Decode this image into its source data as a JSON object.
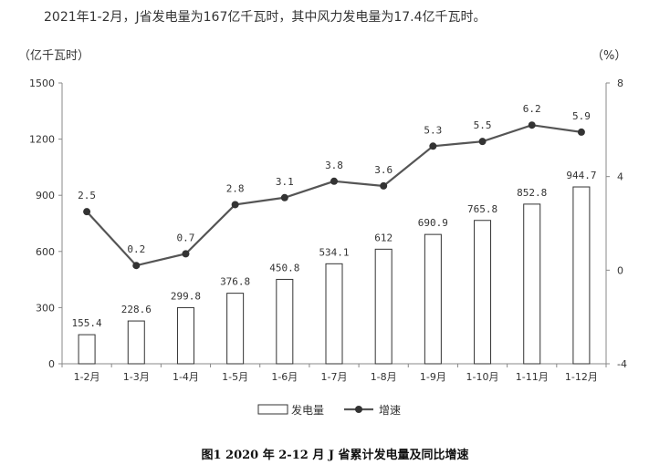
{
  "headline": "2021年1-2月，J省发电量为167亿千瓦时，其中风力发电量为17.4亿千瓦时。",
  "caption": "图1    2020 年 2-12 月 J 省累计发电量及同比增速",
  "chart_data": {
    "type": "bar",
    "categories": [
      "1-2月",
      "1-3月",
      "1-4月",
      "1-5月",
      "1-6月",
      "1-7月",
      "1-8月",
      "1-9月",
      "1-10月",
      "1-11月",
      "1-12月"
    ],
    "series": [
      {
        "name": "发电量",
        "type": "bar",
        "axis": "left",
        "values": [
          155.4,
          228.6,
          299.8,
          376.8,
          450.8,
          534.1,
          612,
          690.9,
          765.8,
          852.8,
          944.7
        ],
        "labels": [
          "155.4",
          "228.6",
          "299.8",
          "376.8",
          "450.8",
          "534.1",
          "612",
          "690.9",
          "765.8",
          "852.8",
          "944.7"
        ]
      },
      {
        "name": "增速",
        "type": "line",
        "axis": "right",
        "values": [
          2.5,
          0.2,
          0.7,
          2.8,
          3.1,
          3.8,
          3.6,
          5.3,
          5.5,
          6.2,
          5.9
        ],
        "labels": [
          "2.5",
          "0.2",
          "0.7",
          "2.8",
          "3.1",
          "3.8",
          "3.6",
          "5.3",
          "5.5",
          "6.2",
          "5.9"
        ]
      }
    ],
    "y_left": {
      "label": "（亿千瓦时）",
      "min": 0,
      "max": 1500,
      "ticks": [
        0,
        300,
        600,
        900,
        1200,
        1500
      ]
    },
    "y_right": {
      "label": "（%）",
      "min": -4,
      "max": 8,
      "ticks": [
        -4,
        0,
        4,
        8
      ]
    },
    "legend_position": "bottom",
    "grid": false
  }
}
